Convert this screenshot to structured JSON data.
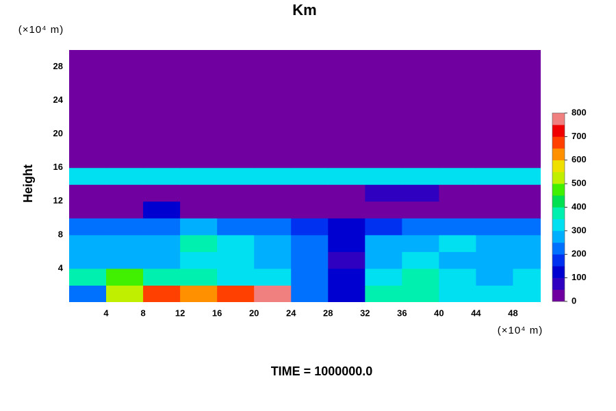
{
  "chart_data": {
    "type": "heatmap",
    "title": "Km",
    "y_unit_label": "(×10⁴ m)",
    "x_unit_label": "(×10⁴ m)",
    "y_label": "Height",
    "footer": "TIME = 1000000.0",
    "xlim": [
      0,
      51
    ],
    "ylim": [
      0,
      30
    ],
    "xticks": [
      4,
      8,
      12,
      16,
      20,
      24,
      28,
      32,
      36,
      40,
      44,
      48
    ],
    "yticks": [
      4,
      8,
      12,
      16,
      20,
      24,
      28
    ],
    "x": [
      2,
      6,
      10,
      14,
      18,
      22,
      26,
      30,
      34,
      38,
      42,
      46,
      50
    ],
    "y": [
      1,
      3,
      5,
      7,
      9,
      11,
      13,
      15,
      17,
      19,
      21,
      23,
      25,
      27,
      29
    ],
    "z": [
      [
        200,
        500,
        650,
        600,
        650,
        750,
        200,
        100,
        350,
        350,
        300,
        300,
        300
      ],
      [
        350,
        450,
        350,
        350,
        300,
        300,
        200,
        100,
        300,
        350,
        300,
        250,
        300
      ],
      [
        250,
        250,
        250,
        300,
        300,
        250,
        200,
        80,
        250,
        300,
        250,
        250,
        250
      ],
      [
        250,
        250,
        250,
        350,
        300,
        250,
        200,
        100,
        250,
        250,
        300,
        250,
        250
      ],
      [
        200,
        200,
        200,
        250,
        200,
        200,
        150,
        100,
        150,
        200,
        200,
        200,
        200
      ],
      [
        10,
        10,
        100,
        10,
        10,
        10,
        10,
        10,
        10,
        10,
        10,
        10,
        10
      ],
      [
        10,
        10,
        10,
        10,
        10,
        10,
        10,
        10,
        60,
        60,
        10,
        10,
        10
      ],
      [
        300,
        300,
        300,
        300,
        300,
        300,
        300,
        300,
        300,
        300,
        300,
        300,
        300
      ],
      [
        10,
        10,
        10,
        10,
        10,
        10,
        10,
        10,
        10,
        10,
        10,
        10,
        10
      ],
      [
        10,
        10,
        10,
        10,
        10,
        10,
        10,
        10,
        10,
        10,
        10,
        10,
        10
      ],
      [
        10,
        10,
        10,
        10,
        10,
        10,
        10,
        10,
        10,
        10,
        10,
        10,
        10
      ],
      [
        10,
        10,
        10,
        10,
        10,
        10,
        10,
        10,
        10,
        10,
        10,
        10,
        10
      ],
      [
        10,
        10,
        10,
        10,
        10,
        10,
        10,
        10,
        10,
        10,
        10,
        10,
        10
      ],
      [
        10,
        10,
        10,
        10,
        10,
        10,
        10,
        10,
        10,
        10,
        10,
        10,
        10
      ],
      [
        10,
        10,
        10,
        10,
        10,
        10,
        10,
        10,
        10,
        10,
        10,
        10,
        10
      ]
    ],
    "colorbar": {
      "lim": [
        0,
        800
      ],
      "ticks": [
        0,
        100,
        200,
        300,
        400,
        500,
        600,
        700,
        800
      ],
      "colors": [
        "#7000a0",
        "#3000c0",
        "#0000d0",
        "#0030f0",
        "#0070ff",
        "#00b0ff",
        "#00e0f0",
        "#00f0b0",
        "#00e050",
        "#40f000",
        "#c0f000",
        "#f0e000",
        "#ff9000",
        "#ff4000",
        "#f00000",
        "#f08080"
      ]
    }
  }
}
